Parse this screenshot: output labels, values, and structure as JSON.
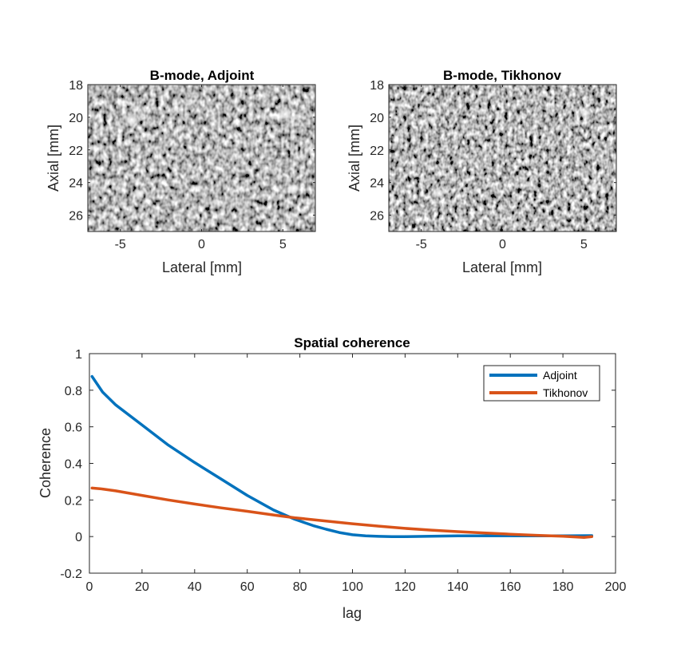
{
  "chart_data": [
    {
      "type": "heatmap",
      "title": "B-mode, Adjoint",
      "xlabel": "Lateral [mm]",
      "ylabel": "Axial [mm]",
      "xlim": [
        -7,
        7
      ],
      "ylim": [
        18,
        27
      ],
      "y_reversed": true,
      "xticks": [
        -5,
        0,
        5
      ],
      "yticks": [
        18,
        20,
        22,
        24,
        26
      ],
      "colormap": "gray"
    },
    {
      "type": "heatmap",
      "title": "B-mode, Tikhonov",
      "xlabel": "Lateral [mm]",
      "ylabel": "Axial [mm]",
      "xlim": [
        -7,
        7
      ],
      "ylim": [
        18,
        27
      ],
      "y_reversed": true,
      "xticks": [
        -5,
        0,
        5
      ],
      "yticks": [
        18,
        20,
        22,
        24,
        26
      ],
      "colormap": "gray"
    },
    {
      "type": "line",
      "title": "Spatial coherence",
      "xlabel": "lag",
      "ylabel": "Coherence",
      "xlim": [
        0,
        200
      ],
      "ylim": [
        -0.2,
        1
      ],
      "xticks": [
        0,
        20,
        40,
        60,
        80,
        100,
        120,
        140,
        160,
        180,
        200
      ],
      "yticks": [
        -0.2,
        0,
        0.2,
        0.4,
        0.6,
        0.8,
        1
      ],
      "ytick_labels": [
        "-0.2",
        "0",
        "0.2",
        "0.4",
        "0.6",
        "0.8",
        "1"
      ],
      "legend_position": "top-right",
      "series": [
        {
          "name": "Adjoint",
          "color": "#0072BD",
          "x": [
            1,
            5,
            10,
            20,
            30,
            40,
            50,
            60,
            70,
            78,
            85,
            90,
            95,
            100,
            105,
            110,
            115,
            120,
            130,
            140,
            150,
            160,
            170,
            180,
            191
          ],
          "y": [
            0.875,
            0.79,
            0.72,
            0.61,
            0.5,
            0.405,
            0.315,
            0.225,
            0.145,
            0.095,
            0.06,
            0.04,
            0.022,
            0.01,
            0.004,
            0.001,
            0.0,
            0.0,
            0.002,
            0.004,
            0.004,
            0.004,
            0.004,
            0.004,
            0.005
          ]
        },
        {
          "name": "Tikhonov",
          "color": "#D95319",
          "x": [
            1,
            5,
            10,
            20,
            30,
            40,
            50,
            60,
            70,
            78,
            90,
            100,
            110,
            120,
            130,
            140,
            150,
            160,
            170,
            180,
            188,
            191
          ],
          "y": [
            0.265,
            0.26,
            0.25,
            0.225,
            0.2,
            0.178,
            0.157,
            0.138,
            0.118,
            0.103,
            0.085,
            0.07,
            0.057,
            0.045,
            0.035,
            0.027,
            0.02,
            0.013,
            0.007,
            0.002,
            -0.005,
            0.0
          ]
        }
      ]
    }
  ]
}
